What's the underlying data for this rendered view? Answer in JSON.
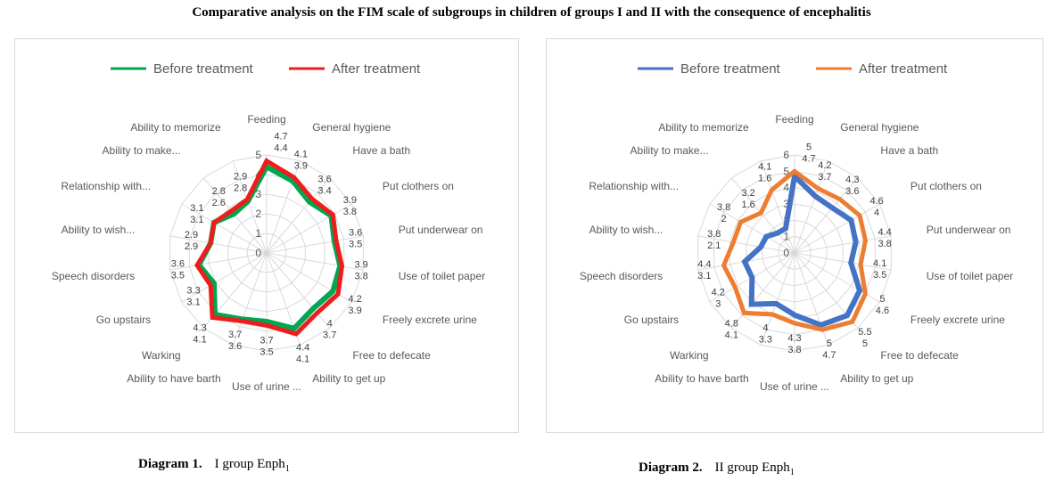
{
  "title": "Comparative analysis on the FIM scale of subgroups in children of groups I and II with the consequence of encephalitis",
  "chart_data": [
    {
      "type": "radar",
      "caption_label": "Diagram 1.",
      "caption_text": "I group Enph",
      "caption_sub": "1",
      "rmax": 5,
      "ticks": [
        0,
        1,
        2,
        3,
        4,
        5
      ],
      "legend_position": "top",
      "categories": [
        "Feeding",
        "General hygiene",
        "Have a bath",
        "Put clothers  on",
        "Put underwear  on",
        "Use of toilet paper",
        "Freely excrete urine",
        "Free to defecate",
        "Ability to get up",
        "Use of urine ...",
        "Ability to have  barth",
        "Warking",
        "Go upstairs",
        "Speech disorders",
        "Ability to wish...",
        "Relationship with...",
        "Ability to make...",
        "Ability to memorize"
      ],
      "series": [
        {
          "name": "Before treatment",
          "color": "#00a650",
          "values": [
            4.4,
            3.9,
            3.4,
            3.8,
            3.5,
            3.8,
            3.9,
            3.7,
            4.1,
            3.5,
            3.6,
            4.1,
            3.1,
            3.5,
            2.9,
            3.1,
            2.6,
            2.8
          ]
        },
        {
          "name": "After treatment",
          "color": "#ee1c1c",
          "values": [
            4.7,
            4.1,
            3.6,
            3.9,
            3.6,
            3.9,
            4.2,
            4,
            4.4,
            3.7,
            3.7,
            4.3,
            3.3,
            3.6,
            2.9,
            3.1,
            2.8,
            2.9
          ]
        }
      ]
    },
    {
      "type": "radar",
      "caption_label": "Diagram 2.",
      "caption_text": "II group Enph",
      "caption_sub": "1",
      "rmax": 6,
      "ticks": [
        0,
        1,
        2,
        3,
        4,
        5,
        6
      ],
      "legend_position": "top",
      "categories": [
        "Feeding",
        "General hygiene",
        "Have a bath",
        "Put clothers  on",
        "Put underwear  on",
        "Use of toilet paper",
        "Freely excrete urine",
        "Free to defecate",
        "Ability to get up",
        "Use of urine ...",
        "Ability to have  barth",
        "Warking",
        "Go upstairs",
        "Speech disorders",
        "Ability to wish...",
        "Relationship with...",
        "Ability to make...",
        "Ability to memorize"
      ],
      "series": [
        {
          "name": "Before treatment",
          "color": "#4472c4",
          "values": [
            4.7,
            3.7,
            3.6,
            4,
            3.8,
            3.5,
            4.6,
            5,
            4.7,
            3.8,
            3.3,
            4.1,
            3,
            3.1,
            2.1,
            2,
            1.6,
            1.6
          ]
        },
        {
          "name": "After treatment",
          "color": "#ed7d31",
          "values": [
            5,
            4.2,
            4.3,
            4.6,
            4.4,
            4.1,
            5,
            5.5,
            5,
            4.3,
            4,
            4.8,
            4.2,
            4.4,
            3.8,
            3.8,
            3.2,
            4.1
          ]
        }
      ]
    }
  ]
}
